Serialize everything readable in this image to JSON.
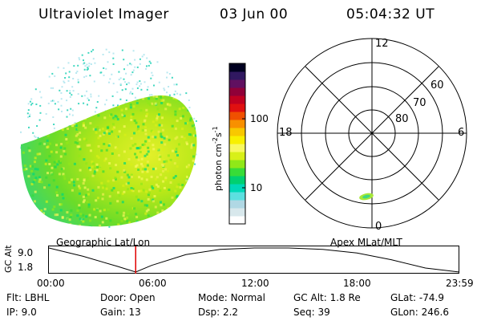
{
  "header": {
    "instrument": "Ultraviolet Imager",
    "date": "03 Jun 00",
    "time": "05:04:32 UT"
  },
  "image_panel": {
    "label": "Geographic Lat/Lon"
  },
  "polar_panel": {
    "label": "Apex MLat/MLT",
    "mlt_labels": [
      "12",
      "18",
      "6",
      "0"
    ],
    "lat_labels": [
      "60",
      "70",
      "80"
    ]
  },
  "colorbar": {
    "label_main": "photon cm",
    "label_sup1": "-2",
    "label_mid": "s",
    "label_sup2": "-1",
    "ticks": [
      "100",
      "10"
    ],
    "colors": [
      "#ffffff",
      "#d8e8ec",
      "#b0d8e4",
      "#5ce0e0",
      "#00d8b8",
      "#00d070",
      "#38dc38",
      "#90e818",
      "#d8f018",
      "#f8f860",
      "#f8f000",
      "#f8c800",
      "#f89000",
      "#f05000",
      "#e01010",
      "#c00020",
      "#900038",
      "#601060",
      "#301860",
      "#000020"
    ]
  },
  "timeline": {
    "ylabel": "GC Alt",
    "yticks": [
      "9.0",
      "1.8"
    ],
    "xticks": [
      "00:00",
      "06:00",
      "12:00",
      "18:00",
      "23:59"
    ],
    "current_time_hours": 5.07
  },
  "status": {
    "flt_label": "Flt:",
    "flt_value": "LBHL",
    "ip_label": "IP:",
    "ip_value": "9.0",
    "door_label": "Door:",
    "door_value": "Open",
    "gain_label": "Gain:",
    "gain_value": "13",
    "mode_label": "Mode:",
    "mode_value": "Normal",
    "dsp_label": "Dsp:",
    "dsp_value": "2.2",
    "gcalt_label": "GC Alt:",
    "gcalt_value": "1.8 Re",
    "seq_label": "Seq:",
    "seq_value": "39",
    "glat_label": "GLat:",
    "glat_value": "-74.9",
    "glon_label": "GLon:",
    "glon_value": "246.6"
  },
  "chart_data": {
    "type": "line",
    "title": "",
    "xlabel": "",
    "ylabel": "GC Alt",
    "x": [
      0,
      2,
      4,
      5.07,
      6,
      8,
      10,
      12,
      14,
      16,
      18,
      20,
      22,
      23.98
    ],
    "series": [
      {
        "values": [
          9.0,
          6.5,
          3.5,
          1.8,
          3.8,
          7.0,
          8.6,
          9.0,
          9.0,
          8.6,
          7.5,
          5.5,
          3.0,
          1.8
        ]
      }
    ],
    "xlim": [
      0,
      23.98
    ],
    "ylim": [
      1.8,
      9.0
    ],
    "current_time_marker": 5.07
  }
}
